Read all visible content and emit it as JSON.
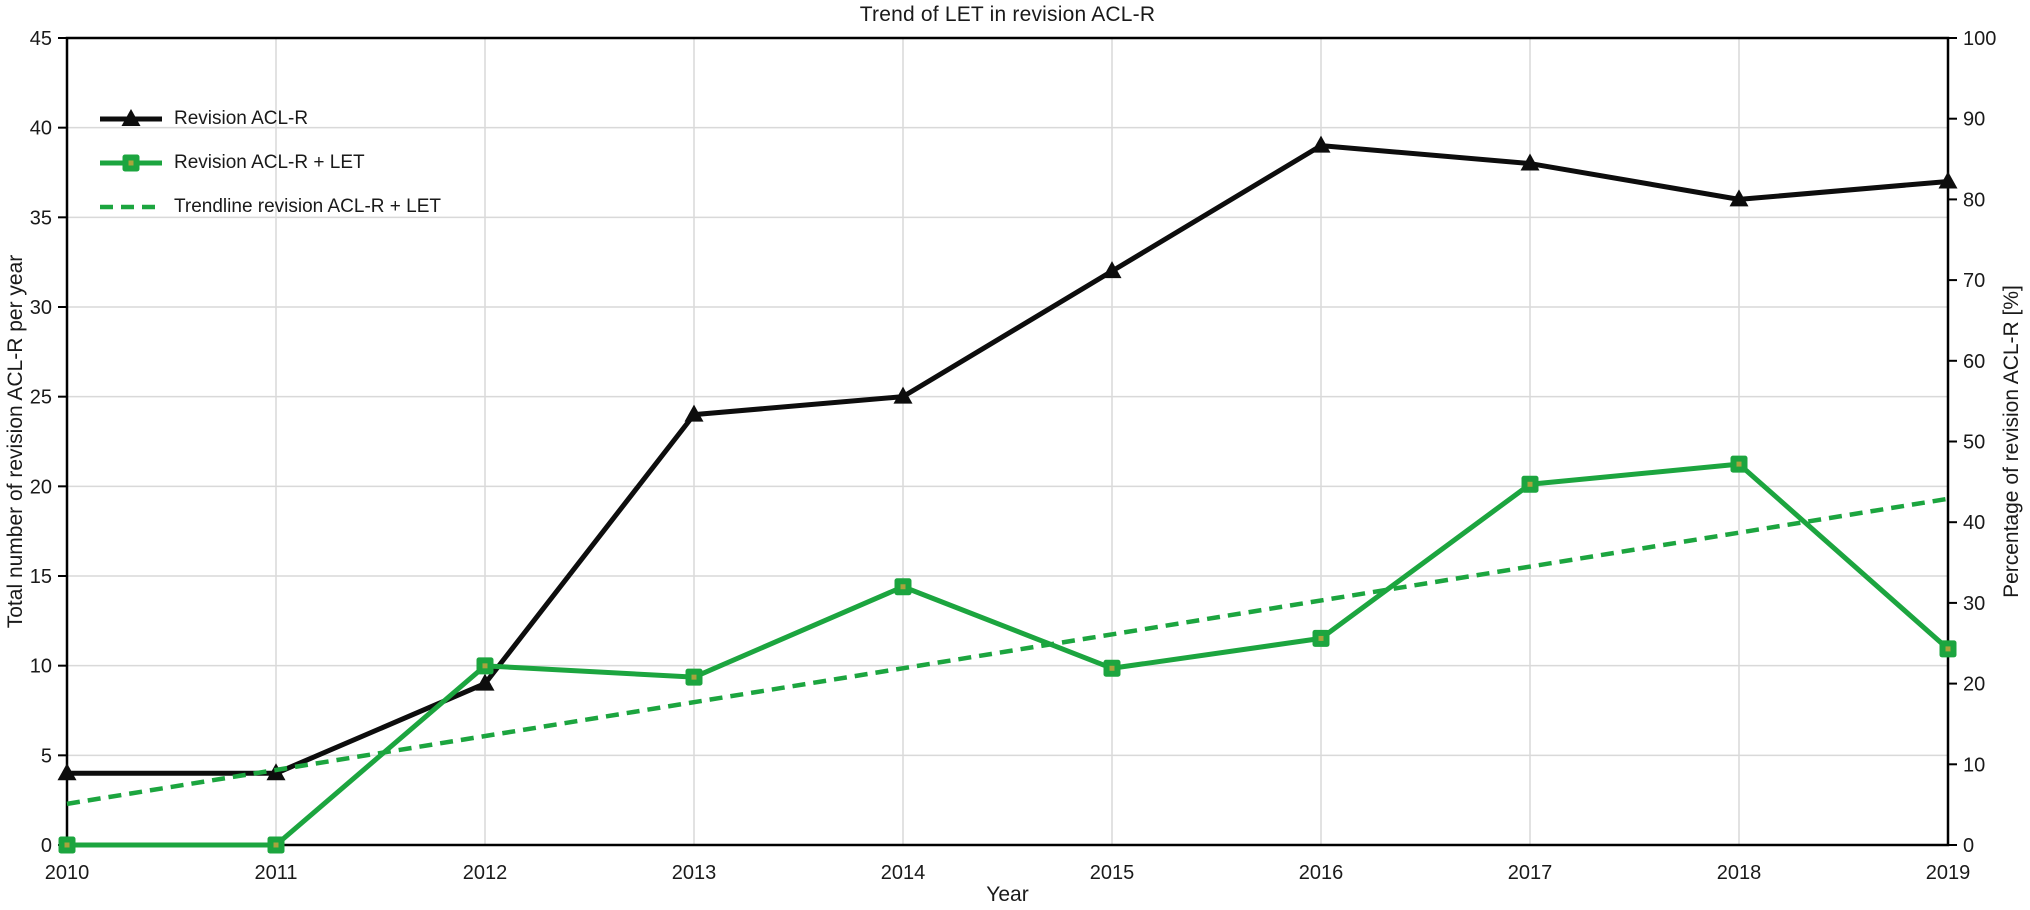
{
  "figure": {
    "title": "Trend of LET in revision ACL-R"
  },
  "chart_data": {
    "type": "line",
    "title": "Trend of LET in revision ACL-R",
    "xlabel": "Year",
    "ylabel_left": "Total number of revision ACL-R per year",
    "ylabel_right": "Percentage of revision ACL-R [%]",
    "categories": [
      "2010",
      "2011",
      "2012",
      "2013",
      "2014",
      "2015",
      "2016",
      "2017",
      "2018",
      "2019"
    ],
    "axes": {
      "left": {
        "min": 0,
        "max": 45,
        "step": 5,
        "label": "Total number of revision ACL-R per year"
      },
      "right": {
        "min": 0,
        "max": 100,
        "step": 10,
        "label": "Percentage of revision ACL-R [%]"
      }
    },
    "grid": true,
    "legend_position": "inside-top-left",
    "series": [
      {
        "name": "Revision ACL-R",
        "axis": "left",
        "color": "#0d0d0d",
        "marker": "triangle",
        "line_style": "solid",
        "values": [
          4,
          4,
          9,
          24,
          25,
          32,
          39,
          38,
          36,
          37
        ]
      },
      {
        "name": "Revision ACL-R + LET",
        "axis": "right",
        "color": "#1ca53f",
        "marker": "square",
        "marker_center_color": "#a9a43c",
        "line_style": "solid",
        "values": [
          0,
          0,
          22.2,
          20.8,
          32.0,
          21.9,
          25.6,
          44.7,
          47.2,
          24.3
        ]
      },
      {
        "name": "Trendline revision ACL-R + LET",
        "axis": "right",
        "color": "#1ca53f",
        "marker": "none",
        "line_style": "dashed",
        "trend": {
          "start": 5.1,
          "end": 42.9
        }
      }
    ],
    "colors": {
      "grid": "#d9d9d9",
      "axis": "#000000",
      "background": "#ffffff"
    }
  }
}
